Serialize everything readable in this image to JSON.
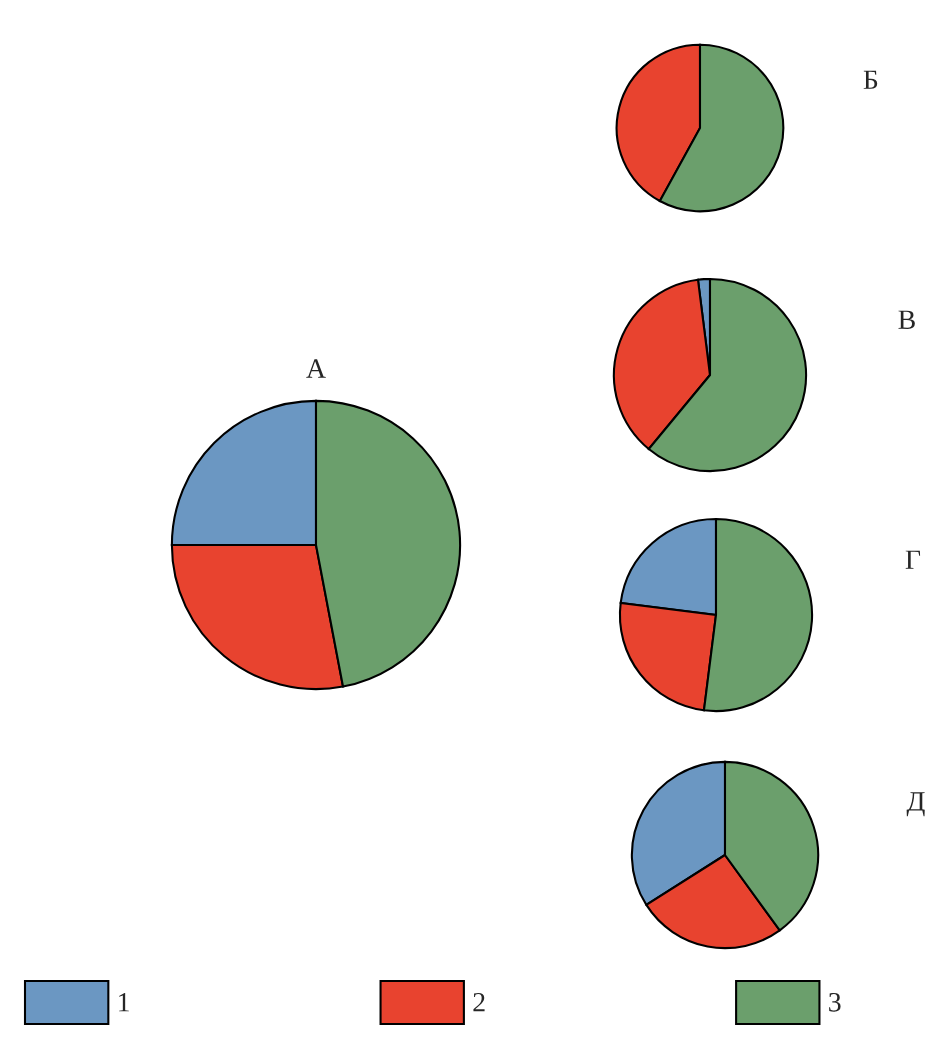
{
  "chart_data": [
    {
      "type": "pie",
      "title": "А",
      "categories": [
        "1",
        "2",
        "3"
      ],
      "values": [
        25,
        28,
        47
      ],
      "colors": [
        "#6b97c2",
        "#e8432f",
        "#6b9f6c"
      ],
      "legend": "bottom"
    },
    {
      "type": "pie",
      "title": "Б",
      "categories": [
        null,
        null,
        null
      ],
      "values": [
        0,
        42,
        58
      ],
      "colors": [
        "#6b97c2",
        "#e8432f",
        "#6b9f6c"
      ]
    },
    {
      "type": "pie",
      "title": "В",
      "categories": [
        null,
        null,
        null
      ],
      "values": [
        2,
        37,
        61
      ],
      "colors": [
        "#6b97c2",
        "#e8432f",
        "#6b9f6c"
      ]
    },
    {
      "type": "pie",
      "title": "Г",
      "categories": [
        null,
        null,
        null
      ],
      "values": [
        23,
        25,
        52
      ],
      "colors": [
        "#6b97c2",
        "#e8432f",
        "#6b9f6c"
      ]
    },
    {
      "type": "pie",
      "title": "Д",
      "categories": [
        null,
        null,
        null
      ],
      "values": [
        34,
        26,
        40
      ],
      "colors": [
        "#6b97c2",
        "#e8432f",
        "#6b9f6c"
      ]
    }
  ]
}
